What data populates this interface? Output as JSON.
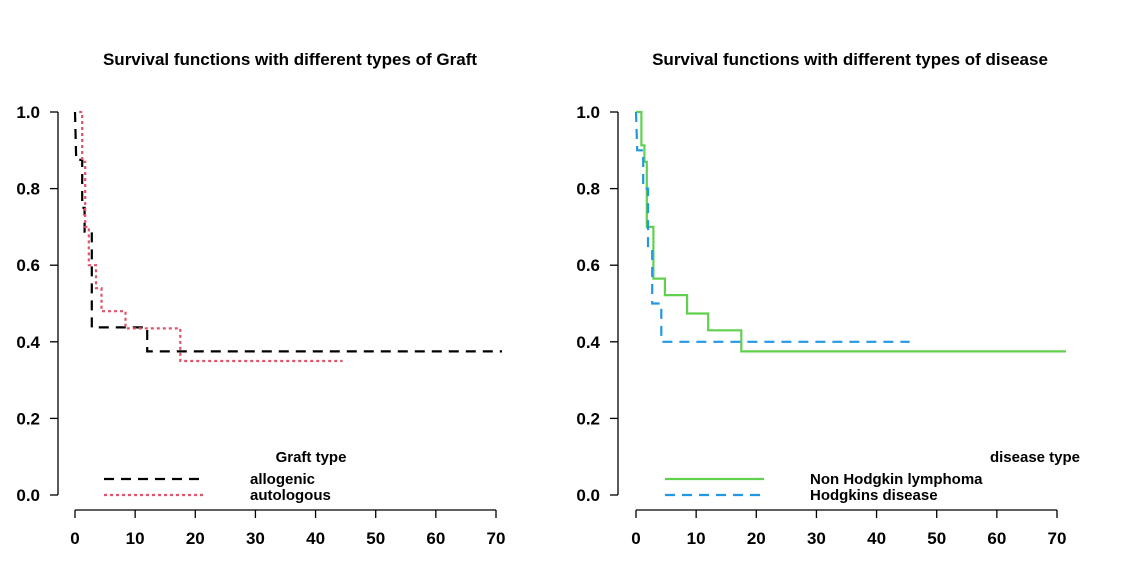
{
  "chart_data": [
    {
      "type": "line",
      "title": "Survival functions with different types of Graft",
      "xlabel": "",
      "ylabel": "",
      "xlim": [
        0,
        70
      ],
      "ylim": [
        0,
        1
      ],
      "xticks": [
        0,
        10,
        20,
        30,
        40,
        50,
        60,
        70
      ],
      "yticks": [
        0.0,
        0.2,
        0.4,
        0.6,
        0.8,
        1.0
      ],
      "ytick_labels": [
        "0.0",
        "0.2",
        "0.4",
        "0.6",
        "0.8",
        "1.0"
      ],
      "grid": false,
      "legend": {
        "title": "Graft type",
        "position": "bottom-center"
      },
      "series": [
        {
          "name": "allogenic",
          "color": "#000000",
          "dash": "dashed",
          "points": [
            [
              0,
              1.0
            ],
            [
              0.2,
              0.875
            ],
            [
              1.2,
              0.875
            ],
            [
              1.2,
              0.75
            ],
            [
              1.6,
              0.75
            ],
            [
              1.6,
              0.6875
            ],
            [
              2.8,
              0.6875
            ],
            [
              2.8,
              0.4375
            ],
            [
              12,
              0.4375
            ],
            [
              12,
              0.375
            ],
            [
              71,
              0.375
            ]
          ]
        },
        {
          "name": "autologous",
          "color": "#df536b",
          "dash": "dotted",
          "points": [
            [
              0.7,
              1.0
            ],
            [
              1.2,
              1.0
            ],
            [
              1.2,
              0.87
            ],
            [
              1.7,
              0.87
            ],
            [
              1.7,
              0.7
            ],
            [
              2.3,
              0.7
            ],
            [
              2.3,
              0.6
            ],
            [
              3.5,
              0.6
            ],
            [
              3.5,
              0.54
            ],
            [
              4.4,
              0.54
            ],
            [
              4.4,
              0.48
            ],
            [
              8.4,
              0.48
            ],
            [
              8.4,
              0.435
            ],
            [
              17.5,
              0.435
            ],
            [
              17.5,
              0.35
            ],
            [
              44.5,
              0.35
            ]
          ]
        }
      ]
    },
    {
      "type": "line",
      "title": "Survival functions with different types of disease",
      "xlabel": "",
      "ylabel": "",
      "xlim": [
        0,
        70
      ],
      "ylim": [
        0,
        1
      ],
      "xticks": [
        0,
        10,
        20,
        30,
        40,
        50,
        60,
        70
      ],
      "yticks": [
        0.0,
        0.2,
        0.4,
        0.6,
        0.8,
        1.0
      ],
      "ytick_labels": [
        "0.0",
        "0.2",
        "0.4",
        "0.6",
        "0.8",
        "1.0"
      ],
      "grid": false,
      "legend": {
        "title": "disease type",
        "position": "bottom-right"
      },
      "series": [
        {
          "name": "Non Hodgkin lymphoma",
          "color": "#61d04f",
          "dash": "solid",
          "points": [
            [
              0,
              1.0
            ],
            [
              0.9,
              1.0
            ],
            [
              0.9,
              0.913
            ],
            [
              1.4,
              0.913
            ],
            [
              1.4,
              0.87
            ],
            [
              1.8,
              0.87
            ],
            [
              1.8,
              0.7
            ],
            [
              2.9,
              0.7
            ],
            [
              2.9,
              0.565
            ],
            [
              4.8,
              0.565
            ],
            [
              4.8,
              0.522
            ],
            [
              8.5,
              0.522
            ],
            [
              8.5,
              0.474
            ],
            [
              12,
              0.474
            ],
            [
              12,
              0.43
            ],
            [
              17.5,
              0.43
            ],
            [
              17.5,
              0.375
            ],
            [
              71.5,
              0.375
            ]
          ]
        },
        {
          "name": "Hodgkins disease",
          "color": "#2297e6",
          "dash": "dashed",
          "points": [
            [
              0,
              1.0
            ],
            [
              0.2,
              0.9
            ],
            [
              1.2,
              0.9
            ],
            [
              1.2,
              0.8
            ],
            [
              2.0,
              0.8
            ],
            [
              2.0,
              0.65
            ],
            [
              2.7,
              0.65
            ],
            [
              2.7,
              0.5
            ],
            [
              4.2,
              0.5
            ],
            [
              4.2,
              0.4
            ],
            [
              45.5,
              0.4
            ]
          ]
        }
      ]
    }
  ]
}
